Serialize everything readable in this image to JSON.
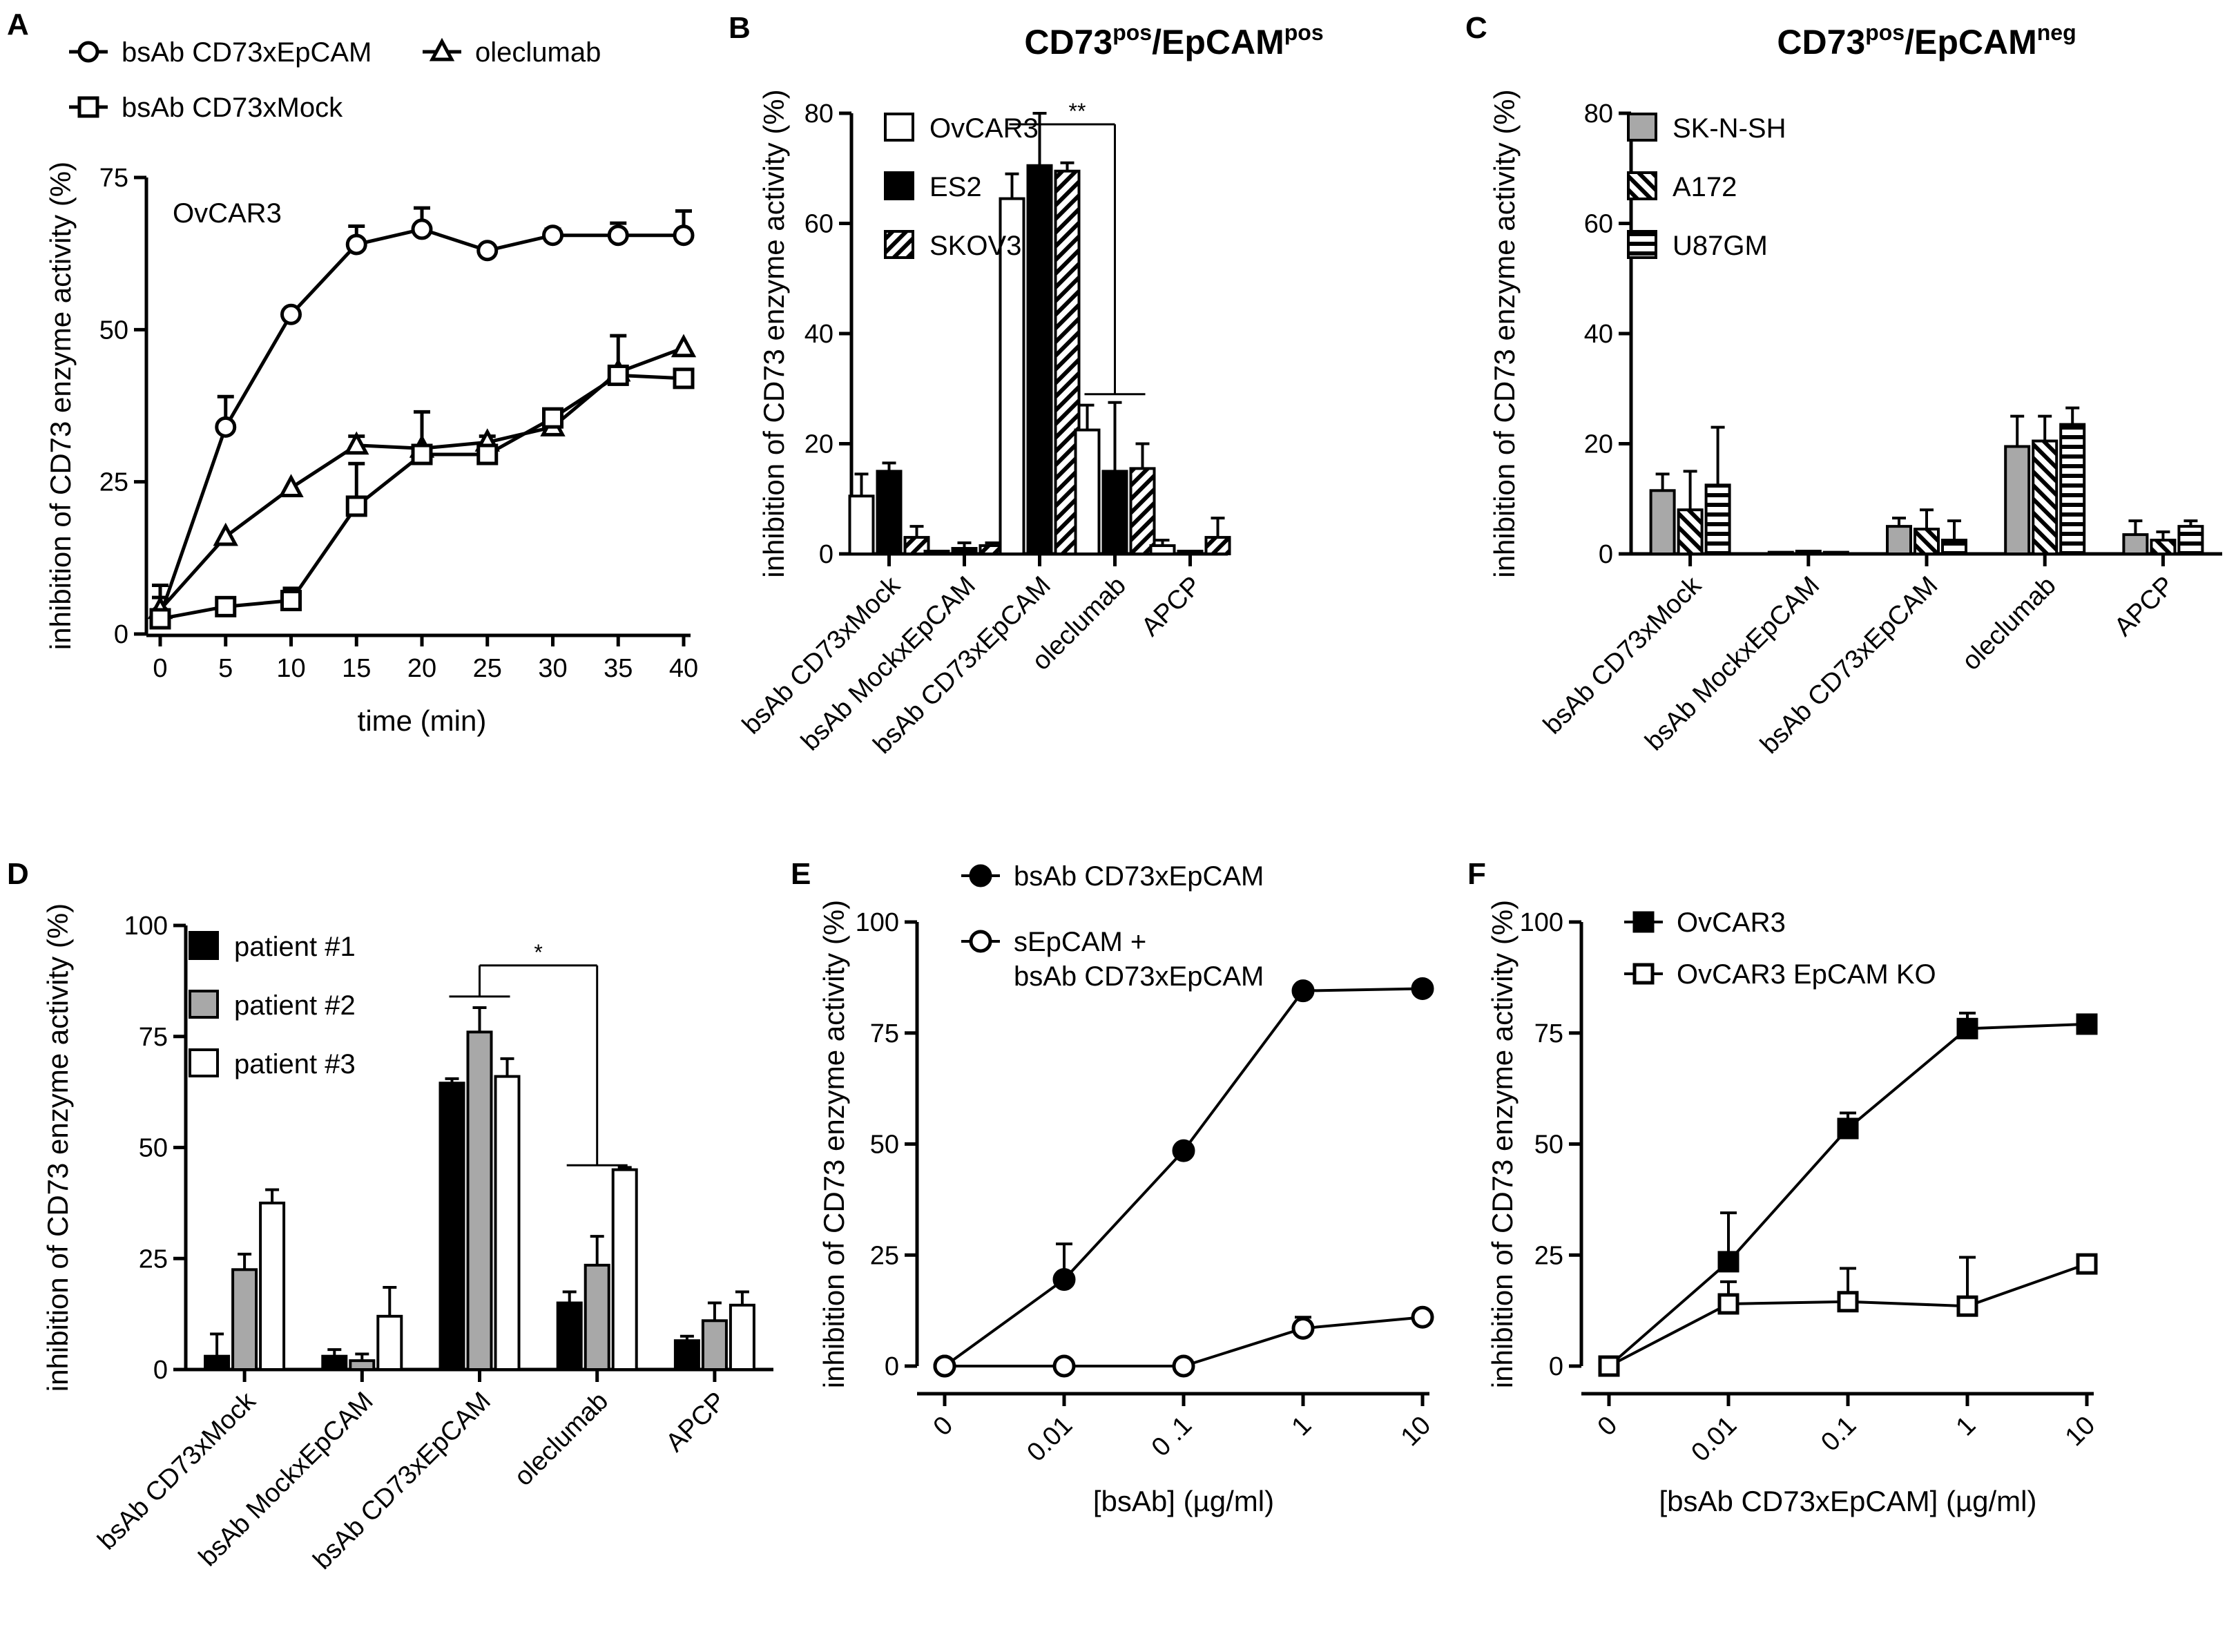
{
  "figure_title": "CD73 enzyme activity inhibition panels",
  "chart_data": [
    {
      "id": "A",
      "type": "line",
      "panel": "A",
      "title": "",
      "inset_label": "OvCAR3",
      "xlabel": "time  (min)",
      "ylabel": "inhibition of CD73 enzyme activity  (%)",
      "xlim": [
        0,
        40
      ],
      "ylim": [
        0,
        75
      ],
      "xticks": [
        0,
        5,
        10,
        15,
        20,
        25,
        30,
        35,
        40
      ],
      "yticks": [
        0,
        25,
        50,
        75
      ],
      "legend_position": "top",
      "series": [
        {
          "name": "bsAb CD73xEpCAM",
          "marker": "circle",
          "x": [
            0,
            5,
            10,
            15,
            20,
            25,
            30,
            35,
            40
          ],
          "y": [
            3,
            34,
            52.5,
            64,
            66.5,
            63,
            65.5,
            65.5,
            65.5
          ],
          "err": [
            5,
            5,
            0.5,
            3,
            3.5,
            0.5,
            1,
            2,
            4
          ]
        },
        {
          "name": "oleclumab",
          "marker": "triangle",
          "x": [
            0,
            5,
            10,
            15,
            20,
            25,
            30,
            35,
            40
          ],
          "y": [
            4,
            16,
            24,
            31,
            30.5,
            31.5,
            34,
            43,
            47
          ],
          "err": [
            2,
            0.5,
            0.5,
            1.5,
            0.5,
            1,
            0.5,
            6,
            0.5
          ]
        },
        {
          "name": "bsAb CD73xMock",
          "marker": "square",
          "x": [
            0,
            5,
            10,
            15,
            20,
            25,
            30,
            35,
            40
          ],
          "y": [
            2.5,
            4.5,
            5.5,
            21,
            29.5,
            29.5,
            35.5,
            42.5,
            42
          ],
          "err": [
            1,
            1,
            2,
            7,
            7,
            1,
            1,
            1,
            1
          ]
        }
      ]
    },
    {
      "id": "B",
      "type": "bar",
      "panel": "B",
      "title": "CD73",
      "title_sup1": "pos",
      "title_mid": "/EpCAM",
      "title_sup2": "pos",
      "xlabel": "",
      "ylabel": "inhibition of CD73 enzyme activity  (%)",
      "ylim": [
        0,
        80
      ],
      "yticks": [
        0,
        20,
        40,
        60,
        80
      ],
      "legend_position": "top-left",
      "categories": [
        "bsAb CD73xMock",
        "bsAb MockxEpCAM",
        "bsAb CD73xEpCAM",
        "oleclumab",
        "APCP"
      ],
      "series": [
        {
          "name": "OvCAR3",
          "fill": "white",
          "values": [
            10.5,
            0.5,
            64.5,
            22.5,
            1.5
          ],
          "err": [
            4,
            0,
            4.5,
            4.5,
            1
          ]
        },
        {
          "name": "ES2",
          "fill": "black",
          "values": [
            15,
            1,
            70.5,
            15,
            0.5
          ],
          "err": [
            1.5,
            1,
            9.5,
            12.5,
            0
          ]
        },
        {
          "name": "SKOV3",
          "fill": "hatch",
          "values": [
            3,
            1.5,
            69.5,
            15.5,
            3
          ],
          "err": [
            2,
            0.5,
            1.5,
            4.5,
            3.5
          ]
        }
      ],
      "significance": "**"
    },
    {
      "id": "C",
      "type": "bar",
      "panel": "C",
      "title": "CD73",
      "title_sup1": "pos",
      "title_mid": "/EpCAM",
      "title_sup2": "neg",
      "xlabel": "",
      "ylabel": "inhibition of CD73 enzyme activity  (%)",
      "ylim": [
        0,
        80
      ],
      "yticks": [
        0,
        20,
        40,
        60,
        80
      ],
      "legend_position": "top-left",
      "categories": [
        "bsAb CD73xMock",
        "bsAb MockxEpCAM",
        "bsAb CD73xEpCAM",
        "oleclumab",
        "APCP"
      ],
      "series": [
        {
          "name": "SK-N-SH",
          "fill": "grey",
          "values": [
            11.5,
            0.3,
            5,
            19.5,
            3.5
          ],
          "err": [
            3,
            0,
            1.5,
            5.5,
            2.5
          ]
        },
        {
          "name": "A172",
          "fill": "diagonal",
          "values": [
            8,
            0.5,
            4.5,
            20.5,
            2.5
          ],
          "err": [
            7,
            0.3,
            3.5,
            4.5,
            1.5
          ]
        },
        {
          "name": "U87GM",
          "fill": "horizontal",
          "values": [
            12.5,
            0.3,
            2.5,
            23.5,
            5
          ],
          "err": [
            10.5,
            0.3,
            3.5,
            3,
            1
          ]
        }
      ]
    },
    {
      "id": "D",
      "type": "bar",
      "panel": "D",
      "title": "",
      "xlabel": "",
      "ylabel": "inhibition of CD73 enzyme activity  (%)",
      "ylim": [
        0,
        100
      ],
      "yticks": [
        0,
        25,
        50,
        75,
        100
      ],
      "legend_position": "top-left",
      "categories": [
        "bsAb CD73xMock",
        "bsAb MockxEpCAM",
        "bsAb CD73xEpCAM",
        "oleclumab",
        "APCP"
      ],
      "series": [
        {
          "name": "patient #1",
          "fill": "black",
          "values": [
            3,
            3,
            64.5,
            15,
            6.5
          ],
          "err": [
            5,
            1.5,
            1,
            2.5,
            1
          ]
        },
        {
          "name": "patient #2",
          "fill": "grey",
          "values": [
            22.5,
            2,
            76,
            23.5,
            11
          ],
          "err": [
            3.5,
            1.5,
            5.5,
            6.5,
            4
          ]
        },
        {
          "name": "patient #3",
          "fill": "white",
          "values": [
            37.5,
            12,
            66,
            45,
            14.5
          ],
          "err": [
            3,
            6.5,
            4,
            0.5,
            3
          ]
        }
      ],
      "significance": "*"
    },
    {
      "id": "E",
      "type": "line",
      "panel": "E",
      "title": "",
      "xlabel": "[bsAb] (µg/ml)",
      "ylabel": "inhibition of CD73 enzyme activity  (%)",
      "ylim": [
        0,
        100
      ],
      "yticks": [
        0,
        25,
        50,
        75,
        100
      ],
      "xtick_labels": [
        "0",
        "0.01",
        "0 .1",
        "1",
        "10"
      ],
      "legend_position": "top",
      "series": [
        {
          "name": "bsAb CD73xEpCAM",
          "marker": "filled-circle",
          "y": [
            0,
            19.5,
            48.5,
            84.5,
            85
          ],
          "err": [
            0,
            8,
            0.5,
            0.5,
            0.5
          ]
        },
        {
          "name": "sEpCAM + bsAb CD73xEpCAM",
          "name_line1": "sEpCAM +",
          "name_line2": "bsAb CD73xEpCAM",
          "marker": "open-circle",
          "y": [
            0,
            0,
            0,
            8.5,
            11
          ],
          "err": [
            0,
            0,
            0,
            2.5,
            0.5
          ]
        }
      ]
    },
    {
      "id": "F",
      "type": "line",
      "panel": "F",
      "title": "",
      "xlabel": "[bsAb CD73xEpCAM] (µg/ml)",
      "ylabel": "inhibition of CD73 enzyme activity  (%)",
      "ylim": [
        0,
        100
      ],
      "yticks": [
        0,
        25,
        50,
        75,
        100
      ],
      "xtick_labels": [
        "0",
        "0.01",
        "0.1",
        "1",
        "10"
      ],
      "legend_position": "top",
      "series": [
        {
          "name": "OvCAR3",
          "marker": "filled-square",
          "y": [
            0,
            23.5,
            53.5,
            76,
            77
          ],
          "err": [
            0,
            11,
            3.5,
            3.5,
            1.5
          ]
        },
        {
          "name": "OvCAR3 EpCAM KO",
          "marker": "open-square",
          "y": [
            0,
            14,
            14.5,
            13.5,
            23
          ],
          "err": [
            0,
            5,
            7.5,
            11,
            0.5
          ]
        }
      ]
    }
  ]
}
